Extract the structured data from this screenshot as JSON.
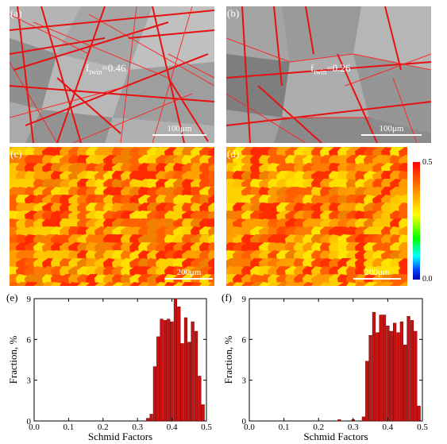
{
  "panels": {
    "a": {
      "label": "(a)",
      "fraction_text": "0.46",
      "fraction_symbol": "f",
      "fraction_sub": "twin",
      "scale_bar": "100μm"
    },
    "b": {
      "label": "(b)",
      "fraction_text": "0.26",
      "fraction_symbol": "f",
      "fraction_sub": "twin",
      "scale_bar": "100μm"
    },
    "c": {
      "label": "(c)",
      "scale_bar": "200μm"
    },
    "d": {
      "label": "(d)",
      "scale_bar": "200μm"
    }
  },
  "colorbar": {
    "max": "0.5",
    "min": "0.0"
  },
  "chart_data": [
    {
      "type": "bar",
      "panel": "(e)",
      "xlabel": "Schmid Factors",
      "ylabel": "Fraction, %",
      "xlim": [
        0.0,
        0.5
      ],
      "ylim": [
        0,
        9
      ],
      "xticks": [
        "0.0",
        "0.1",
        "0.2",
        "0.3",
        "0.4",
        "0.5"
      ],
      "yticks": [
        "0",
        "3",
        "6",
        "9"
      ],
      "bar_color": "#cc1010",
      "x": [
        0.33,
        0.34,
        0.35,
        0.36,
        0.37,
        0.38,
        0.39,
        0.4,
        0.41,
        0.42,
        0.43,
        0.44,
        0.45,
        0.46,
        0.47,
        0.48,
        0.49
      ],
      "values": [
        0.2,
        0.5,
        4.0,
        6.2,
        7.5,
        7.4,
        7.5,
        7.3,
        9.0,
        8.4,
        5.7,
        7.6,
        5.8,
        7.3,
        6.6,
        3.3,
        1.2
      ]
    },
    {
      "type": "bar",
      "panel": "(f)",
      "xlabel": "Schmid Factors",
      "ylabel": "Fraction, %",
      "xlim": [
        0.0,
        0.5
      ],
      "ylim": [
        0,
        9
      ],
      "xticks": [
        "0.0",
        "0.1",
        "0.2",
        "0.3",
        "0.4",
        "0.5"
      ],
      "yticks": [
        "0",
        "3",
        "6",
        "9"
      ],
      "bar_color": "#cc1010",
      "x": [
        0.26,
        0.3,
        0.33,
        0.34,
        0.35,
        0.36,
        0.37,
        0.38,
        0.39,
        0.4,
        0.41,
        0.42,
        0.43,
        0.44,
        0.45,
        0.46,
        0.47,
        0.48,
        0.49
      ],
      "values": [
        0.1,
        0.1,
        0.3,
        4.4,
        6.3,
        8.0,
        6.5,
        7.8,
        7.8,
        7.0,
        6.6,
        7.2,
        6.5,
        7.3,
        5.6,
        7.7,
        7.4,
        6.6,
        1.1
      ]
    }
  ]
}
